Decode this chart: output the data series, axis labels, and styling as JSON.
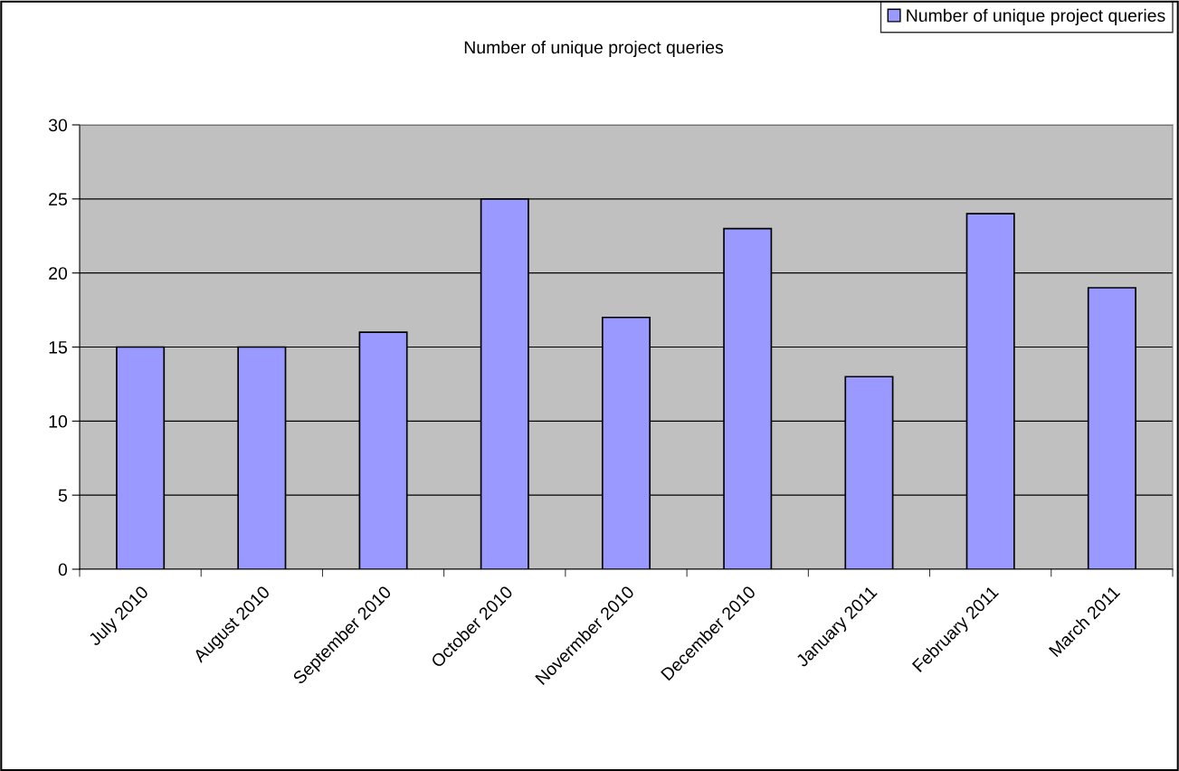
{
  "chart_data": {
    "type": "bar",
    "title": "Number of unique project queries",
    "categories": [
      "July 2010",
      "August 2010",
      "September 2010",
      "October 2010",
      "Novermber 2010",
      "December 2010",
      "January 2011",
      "February 2011",
      "March 2011"
    ],
    "series": [
      {
        "name": "Number of unique project queries",
        "color": "#9999ff",
        "values": [
          15,
          15,
          16,
          25,
          17,
          23,
          13,
          24,
          19
        ]
      }
    ],
    "ylim": [
      0,
      30
    ],
    "yticks": [
      0,
      5,
      10,
      15,
      20,
      25,
      30
    ],
    "grid": "y",
    "legend": "top right"
  }
}
